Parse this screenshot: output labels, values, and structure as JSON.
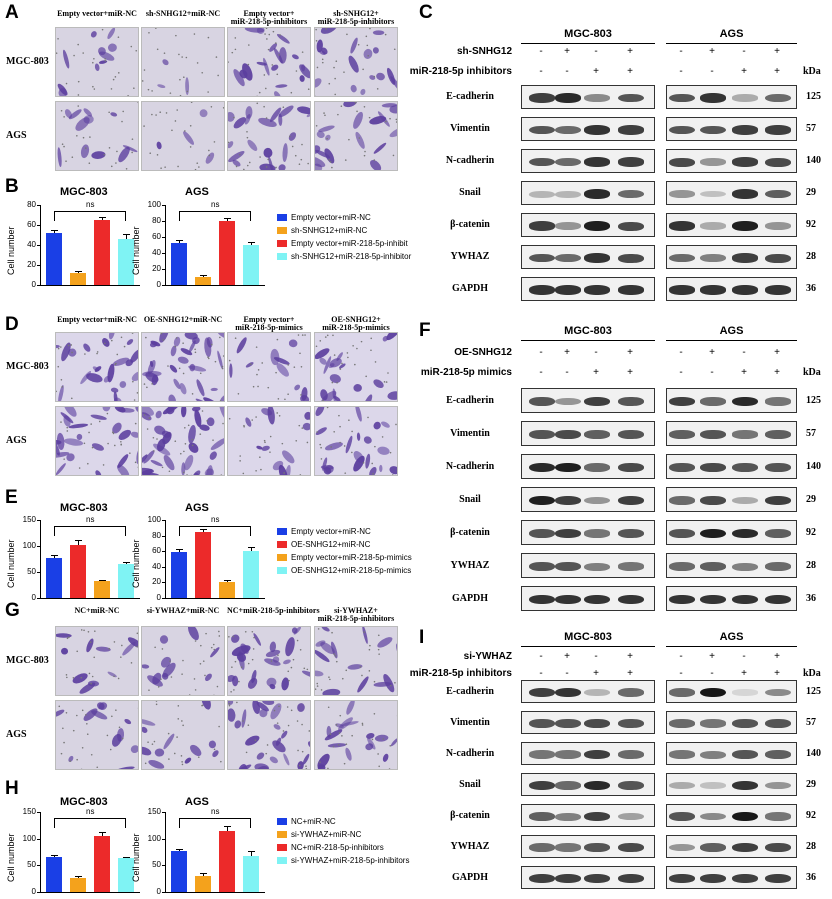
{
  "panels": {
    "A": "A",
    "B": "B",
    "C": "C",
    "D": "D",
    "E": "E",
    "F": "F",
    "G": "G",
    "H": "H",
    "I": "I"
  },
  "rows": [
    "MGC-803",
    "AGS"
  ],
  "A": {
    "cols": [
      "Empty vector+miR-NC",
      "sh-SNHG12+miR-NC",
      "Empty vector+\nmiR-218-5p-inhibitors",
      "sh-SNHG12+\nmiR-218-5p-inhibitors"
    ]
  },
  "D": {
    "cols": [
      "Empty vector+miR-NC",
      "OE-SNHG12+miR-NC",
      "Empty vector+\nmiR-218-5p-mimics",
      "OE-SNHG12+\nmiR-218-5p-mimics"
    ]
  },
  "G": {
    "cols": [
      "NC+miR-NC",
      "si-YWHAZ+miR-NC",
      "NC+miR-218-5p-inhibitors",
      "si-YWHAZ+\nmiR-218-5p-inhibitors"
    ]
  },
  "chart_data": [
    {
      "panel": "B",
      "type": "bar",
      "title": "MGC-803",
      "ylabel": "Cell number",
      "ylim": [
        0,
        80
      ],
      "yticks": [
        0,
        20,
        40,
        60,
        80
      ],
      "annotation": "ns",
      "categories": [
        "Empty vector+miR-NC",
        "sh-SNHG12+miR-NC",
        "Empty vector+miR-218-5p-inhibit",
        "sh-SNHG12+miR-218-5p-inhibitor"
      ],
      "values": [
        52,
        12,
        65,
        46
      ],
      "errors": [
        3,
        2,
        3,
        5
      ],
      "colors": [
        "#1a3fe6",
        "#f4a21c",
        "#ec2a2a",
        "#7ff3f4"
      ]
    },
    {
      "panel": "B",
      "type": "bar",
      "title": "AGS",
      "ylabel": "Cell number",
      "ylim": [
        0,
        100
      ],
      "yticks": [
        0,
        20,
        40,
        60,
        80,
        100
      ],
      "annotation": "ns",
      "categories": [
        "Empty vector+miR-NC",
        "sh-SNHG12+miR-NC",
        "Empty vector+miR-218-5p-inhibit",
        "sh-SNHG12+miR-218-5p-inhibitor"
      ],
      "values": [
        53,
        10,
        80,
        50
      ],
      "errors": [
        3,
        2,
        4,
        4
      ],
      "colors": [
        "#1a3fe6",
        "#f4a21c",
        "#ec2a2a",
        "#7ff3f4"
      ]
    },
    {
      "panel": "E",
      "type": "bar",
      "title": "MGC-803",
      "ylabel": "Cell number",
      "ylim": [
        0,
        150
      ],
      "yticks": [
        0,
        50,
        100,
        150
      ],
      "annotation": "ns",
      "categories": [
        "Empty vector+miR-NC",
        "OE-SNHG12+miR-NC",
        "Empty vector+miR-218-5p-mimics",
        "OE-SNHG12+miR-218-5p-mimics"
      ],
      "values": [
        77,
        102,
        32,
        65
      ],
      "errors": [
        5,
        9,
        3,
        5
      ],
      "colors": [
        "#1a3fe6",
        "#ec2a2a",
        "#f4a21c",
        "#7ff3f4"
      ]
    },
    {
      "panel": "E",
      "type": "bar",
      "title": "AGS",
      "ylabel": "Cell number",
      "ylim": [
        0,
        100
      ],
      "yticks": [
        0,
        20,
        40,
        60,
        80,
        100
      ],
      "annotation": "ns",
      "categories": [
        "Empty vector+miR-NC",
        "OE-SNHG12+miR-NC",
        "Empty vector+miR-218-5p-mimics",
        "OE-SNHG12+miR-218-5p-mimics"
      ],
      "values": [
        59,
        85,
        21,
        60
      ],
      "errors": [
        4,
        3,
        2,
        5
      ],
      "colors": [
        "#1a3fe6",
        "#ec2a2a",
        "#f4a21c",
        "#7ff3f4"
      ]
    },
    {
      "panel": "H",
      "type": "bar",
      "title": "MGC-803",
      "ylabel": "Cell number",
      "ylim": [
        0,
        150
      ],
      "yticks": [
        0,
        50,
        100,
        150
      ],
      "annotation": "ns",
      "categories": [
        "NC+miR-NC",
        "si-YWHAZ+miR-NC",
        "NC+miR-218-5p-inhibitors",
        "si-YWHAZ+miR-218-5p-inhibitors"
      ],
      "values": [
        66,
        27,
        105,
        63
      ],
      "errors": [
        3,
        3,
        7,
        3
      ],
      "colors": [
        "#1a3fe6",
        "#f4a21c",
        "#ec2a2a",
        "#7ff3f4"
      ]
    },
    {
      "panel": "H",
      "type": "bar",
      "title": "AGS",
      "ylabel": "Cell number",
      "ylim": [
        0,
        150
      ],
      "yticks": [
        0,
        50,
        100,
        150
      ],
      "annotation": "ns",
      "categories": [
        "NC+miR-NC",
        "si-YWHAZ+miR-NC",
        "NC+miR-218-5p-inhibitors",
        "si-YWHAZ+miR-218-5p-inhibitors"
      ],
      "values": [
        76,
        30,
        115,
        68
      ],
      "errors": [
        4,
        5,
        8,
        8
      ],
      "colors": [
        "#1a3fe6",
        "#f4a21c",
        "#ec2a2a",
        "#7ff3f4"
      ]
    }
  ],
  "blots": {
    "C": {
      "cell_lines": [
        "MGC-803",
        "AGS"
      ],
      "conditions": [
        "sh-SNHG12",
        "miR-218-5p inhibitors"
      ],
      "signs": [
        [
          "-",
          "+",
          "-",
          "+"
        ],
        [
          "-",
          "-",
          "+",
          "+"
        ]
      ],
      "proteins": [
        {
          "name": "E-cadherin",
          "kda": "125"
        },
        {
          "name": "Vimentin",
          "kda": "57"
        },
        {
          "name": "N-cadherin",
          "kda": "140"
        },
        {
          "name": "Snail",
          "kda": "29"
        },
        {
          "name": "β-catenin",
          "kda": "92"
        },
        {
          "name": "YWHAZ",
          "kda": "28"
        },
        {
          "name": "GAPDH",
          "kda": "36"
        }
      ],
      "kda_label": "kDa"
    },
    "F": {
      "cell_lines": [
        "MGC-803",
        "AGS"
      ],
      "conditions": [
        "OE-SNHG12",
        "miR-218-5p mimics"
      ],
      "signs": [
        [
          "-",
          "+",
          "-",
          "+"
        ],
        [
          "-",
          "-",
          "+",
          "+"
        ]
      ],
      "proteins": [
        {
          "name": "E-cadherin",
          "kda": "125"
        },
        {
          "name": "Vimentin",
          "kda": "57"
        },
        {
          "name": "N-cadherin",
          "kda": "140"
        },
        {
          "name": "Snail",
          "kda": "29"
        },
        {
          "name": "β-catenin",
          "kda": "92"
        },
        {
          "name": "YWHAZ",
          "kda": "28"
        },
        {
          "name": "GAPDH",
          "kda": "36"
        }
      ],
      "kda_label": "kDa"
    },
    "I": {
      "cell_lines": [
        "MGC-803",
        "AGS"
      ],
      "conditions": [
        "si-YWHAZ",
        "miR-218-5p inhibitors"
      ],
      "signs": [
        [
          "-",
          "+",
          "-",
          "+"
        ],
        [
          "-",
          "-",
          "+",
          "+"
        ]
      ],
      "proteins": [
        {
          "name": "E-cadherin",
          "kda": "125"
        },
        {
          "name": "Vimentin",
          "kda": "57"
        },
        {
          "name": "N-cadherin",
          "kda": "140"
        },
        {
          "name": "Snail",
          "kda": "29"
        },
        {
          "name": "β-catenin",
          "kda": "92"
        },
        {
          "name": "YWHAZ",
          "kda": "28"
        },
        {
          "name": "GAPDH",
          "kda": "36"
        }
      ],
      "kda_label": "kDa"
    }
  },
  "band_intensity": {
    "C": [
      [
        0.8,
        0.9,
        0.45,
        0.7
      ],
      [
        0.7,
        0.6,
        0.85,
        0.8
      ],
      [
        0.7,
        0.6,
        0.85,
        0.8
      ],
      [
        0.25,
        0.25,
        0.9,
        0.6
      ],
      [
        0.8,
        0.4,
        0.95,
        0.75
      ],
      [
        0.7,
        0.6,
        0.85,
        0.75
      ],
      [
        0.85,
        0.85,
        0.85,
        0.85
      ],
      [
        0.7,
        0.85,
        0.3,
        0.6
      ],
      [
        0.7,
        0.7,
        0.8,
        0.8
      ],
      [
        0.75,
        0.4,
        0.8,
        0.75
      ],
      [
        0.4,
        0.2,
        0.85,
        0.65
      ],
      [
        0.85,
        0.3,
        0.95,
        0.4
      ],
      [
        0.6,
        0.5,
        0.8,
        0.75
      ],
      [
        0.85,
        0.85,
        0.85,
        0.85
      ]
    ],
    "F": [
      [
        0.7,
        0.4,
        0.8,
        0.7
      ],
      [
        0.7,
        0.75,
        0.65,
        0.7
      ],
      [
        0.9,
        0.95,
        0.6,
        0.75
      ],
      [
        0.95,
        0.8,
        0.4,
        0.8
      ],
      [
        0.7,
        0.8,
        0.55,
        0.7
      ],
      [
        0.7,
        0.7,
        0.5,
        0.55
      ],
      [
        0.85,
        0.85,
        0.85,
        0.85
      ],
      [
        0.8,
        0.6,
        0.9,
        0.55
      ],
      [
        0.65,
        0.7,
        0.55,
        0.65
      ],
      [
        0.7,
        0.75,
        0.7,
        0.7
      ],
      [
        0.6,
        0.75,
        0.3,
        0.8
      ],
      [
        0.7,
        0.95,
        0.9,
        0.65
      ],
      [
        0.6,
        0.65,
        0.5,
        0.6
      ],
      [
        0.85,
        0.85,
        0.85,
        0.85
      ]
    ],
    "I": [
      [
        0.8,
        0.85,
        0.25,
        0.6
      ],
      [
        0.7,
        0.7,
        0.75,
        0.7
      ],
      [
        0.55,
        0.55,
        0.8,
        0.6
      ],
      [
        0.8,
        0.6,
        0.9,
        0.7
      ],
      [
        0.65,
        0.5,
        0.8,
        0.35
      ],
      [
        0.6,
        0.55,
        0.7,
        0.75
      ],
      [
        0.8,
        0.8,
        0.8,
        0.8
      ],
      [
        0.6,
        0.98,
        0.1,
        0.45
      ],
      [
        0.6,
        0.55,
        0.7,
        0.7
      ],
      [
        0.55,
        0.5,
        0.7,
        0.65
      ],
      [
        0.3,
        0.2,
        0.85,
        0.4
      ],
      [
        0.7,
        0.45,
        0.98,
        0.55
      ],
      [
        0.4,
        0.65,
        0.8,
        0.75
      ],
      [
        0.8,
        0.8,
        0.8,
        0.8
      ]
    ]
  }
}
